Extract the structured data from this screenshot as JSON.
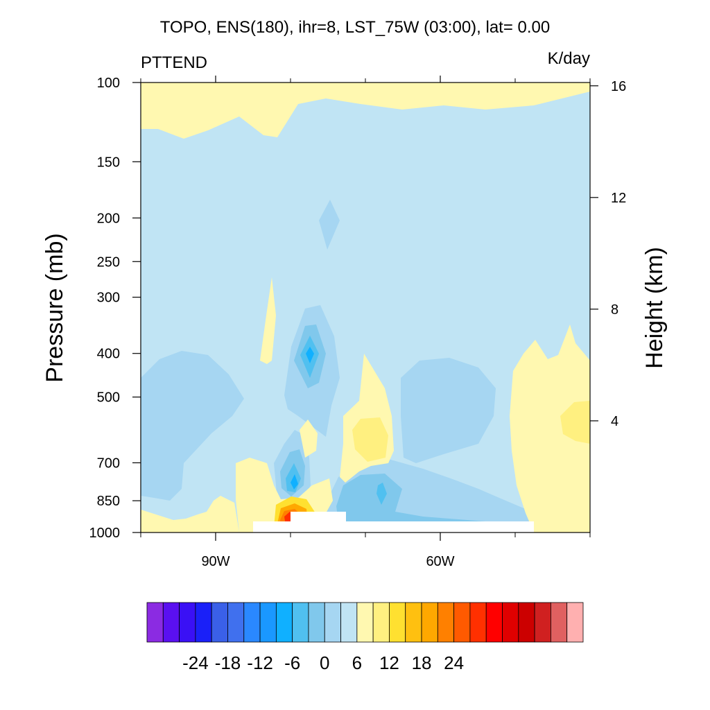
{
  "chart_data": {
    "type": "heatmap",
    "subtype": "filled-contour cross-section",
    "title": "TOPO, ENS(180), ihr=8, LST_75W (03:00), lat= 0.00",
    "left_label": "PTTEND",
    "right_label": "K/day",
    "ylabel": "Pressure (mb)",
    "ylabel_right": "Height (km)",
    "xlabel": "",
    "x_axis": {
      "range": [
        -100,
        -40
      ],
      "ticks": [
        {
          "value": -90,
          "label": "90W"
        },
        {
          "value": -60,
          "label": "60W"
        }
      ],
      "minor_ticks": [
        -100,
        -80,
        -70,
        -50,
        -40
      ]
    },
    "y_axis": {
      "scale": "log",
      "range": [
        1000,
        100
      ],
      "ticks": [
        {
          "value": 1000,
          "label": "1000"
        },
        {
          "value": 850,
          "label": "850"
        },
        {
          "value": 700,
          "label": "700"
        },
        {
          "value": 500,
          "label": "500"
        },
        {
          "value": 400,
          "label": "400"
        },
        {
          "value": 300,
          "label": "300"
        },
        {
          "value": 250,
          "label": "250"
        },
        {
          "value": 200,
          "label": "200"
        },
        {
          "value": 150,
          "label": "150"
        },
        {
          "value": 100,
          "label": "100"
        }
      ]
    },
    "y_axis_right": {
      "ticks": [
        {
          "value": 4,
          "label": "4"
        },
        {
          "value": 8,
          "label": "8"
        },
        {
          "value": 12,
          "label": "12"
        },
        {
          "value": 16,
          "label": "16"
        }
      ]
    },
    "colorbar": {
      "levels": [
        -30,
        -27,
        -24,
        -21,
        -18,
        -15,
        -12,
        -9,
        -6,
        -3,
        0,
        3,
        6,
        9,
        12,
        15,
        18,
        21,
        24,
        27,
        30
      ],
      "labeled": [
        -24,
        -18,
        -12,
        -6,
        0,
        6,
        12,
        18,
        24
      ],
      "colors": [
        "#8b2be2",
        "#5a10f0",
        "#3a10f5",
        "#1a20f8",
        "#3a60e8",
        "#4070ee",
        "#2a88ff",
        "#1a98ff",
        "#10b0ff",
        "#50c0f0",
        "#80c8ec",
        "#a6d6f2",
        "#c0e4f4",
        "#fff8b0",
        "#fff080",
        "#ffe030",
        "#ffc010",
        "#ffa800",
        "#ff8000",
        "#ff5a00",
        "#ff3000",
        "#ff0000",
        "#e00000",
        "#cc0000",
        "#d02020",
        "#e06060",
        "#ffb0b0"
      ]
    },
    "fill_colors": {
      "background": "#c0e4f4",
      "light_blue": "#a6d6f2",
      "mid_blue": "#80c8ec",
      "blue": "#50c0f0",
      "strong_blue": "#10b0ff",
      "pale_yellow": "#fff8b0",
      "yellow": "#fff080",
      "gold": "#ffe030",
      "orange": "#ffa800",
      "dark_orange": "#ff8000",
      "red": "#ff3000",
      "terrain": "#ffffff"
    },
    "grid": false,
    "legend": "bottom (horizontal colorbar)"
  }
}
